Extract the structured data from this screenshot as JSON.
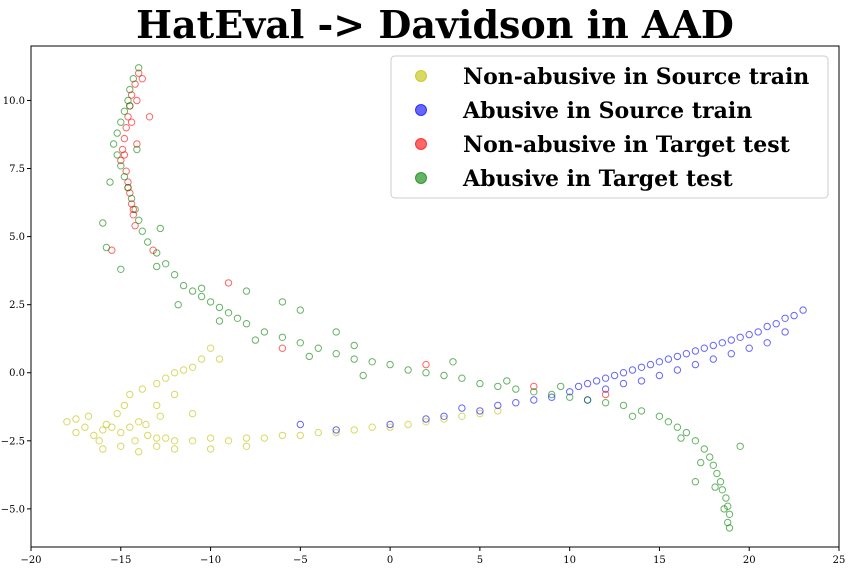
{
  "chart_data": {
    "type": "scatter",
    "title": "HatEval -> Davidson in AAD",
    "xlabel": "",
    "ylabel": "",
    "xlim": [
      -20,
      25
    ],
    "ylim": [
      -6.4,
      12.0
    ],
    "x_ticks": [
      "−20",
      "−15",
      "−10",
      "−5",
      "0",
      "5",
      "10",
      "15",
      "20",
      "25"
    ],
    "x_tick_values": [
      -20,
      -15,
      -10,
      -5,
      0,
      5,
      10,
      15,
      20,
      25
    ],
    "y_ticks": [
      "−5.0",
      "−2.5",
      "0.0",
      "2.5",
      "5.0",
      "7.5",
      "10.0"
    ],
    "y_tick_values": [
      -5.0,
      -2.5,
      0.0,
      2.5,
      5.0,
      7.5,
      10.0
    ],
    "grid": false,
    "legend_position": "top-right",
    "marker": "hollow-circle",
    "series": [
      {
        "name": "Non-abusive in Source train",
        "color": "#bfbf00",
        "points": [
          [
            -18,
            -1.8
          ],
          [
            -17.5,
            -2.2
          ],
          [
            -17,
            -2.0
          ],
          [
            -16.5,
            -2.3
          ],
          [
            -16,
            -2.1
          ],
          [
            -15.5,
            -2.0
          ],
          [
            -15,
            -2.2
          ],
          [
            -14.5,
            -2.0
          ],
          [
            -14,
            -1.8
          ],
          [
            -13.5,
            -2.3
          ],
          [
            -13,
            -2.4
          ],
          [
            -12.5,
            -2.4
          ],
          [
            -12,
            -2.5
          ],
          [
            -11,
            -2.5
          ],
          [
            -10,
            -2.4
          ],
          [
            -9,
            -2.5
          ],
          [
            -8,
            -2.4
          ],
          [
            -7,
            -2.4
          ],
          [
            -6,
            -2.3
          ],
          [
            -5,
            -2.3
          ],
          [
            -4,
            -2.2
          ],
          [
            -3,
            -2.2
          ],
          [
            -2,
            -2.1
          ],
          [
            -1,
            -2.0
          ],
          [
            0,
            -2.0
          ],
          [
            1,
            -1.9
          ],
          [
            2,
            -1.8
          ],
          [
            3,
            -1.7
          ],
          [
            4,
            -1.6
          ],
          [
            5,
            -1.5
          ],
          [
            6,
            -1.4
          ],
          [
            -16,
            -2.8
          ],
          [
            -15,
            -2.7
          ],
          [
            -16.8,
            -1.6
          ],
          [
            -15.2,
            -1.5
          ],
          [
            -14.8,
            -1.2
          ],
          [
            -14.5,
            -0.8
          ],
          [
            -13.8,
            -0.6
          ],
          [
            -13,
            -0.4
          ],
          [
            -12.5,
            -0.2
          ],
          [
            -12,
            0.0
          ],
          [
            -11.5,
            0.1
          ],
          [
            -11,
            0.2
          ],
          [
            -10.5,
            0.5
          ],
          [
            -10,
            0.9
          ],
          [
            -9.5,
            0.5
          ],
          [
            -12,
            -0.8
          ],
          [
            -13,
            -1.2
          ],
          [
            -11,
            -1.5
          ],
          [
            -14,
            -2.9
          ],
          [
            -13,
            -2.7
          ],
          [
            -12,
            -2.8
          ],
          [
            -10,
            -2.8
          ],
          [
            -8,
            -2.7
          ],
          [
            -17.5,
            -1.7
          ],
          [
            -16.2,
            -2.5
          ],
          [
            -15.8,
            -1.9
          ],
          [
            -14.2,
            -2.5
          ],
          [
            -13.6,
            -1.9
          ],
          [
            -12.8,
            -1.6
          ]
        ]
      },
      {
        "name": "Abusive in Source train",
        "color": "#0000ff",
        "points": [
          [
            -5,
            -1.9
          ],
          [
            -3,
            -2.1
          ],
          [
            0,
            -1.9
          ],
          [
            2,
            -1.7
          ],
          [
            3,
            -1.6
          ],
          [
            4,
            -1.3
          ],
          [
            5,
            -1.4
          ],
          [
            6,
            -1.2
          ],
          [
            7,
            -1.1
          ],
          [
            8,
            -1.0
          ],
          [
            9,
            -0.9
          ],
          [
            10,
            -0.7
          ],
          [
            10.5,
            -0.5
          ],
          [
            11,
            -0.4
          ],
          [
            11.5,
            -0.3
          ],
          [
            12,
            -0.2
          ],
          [
            12.5,
            -0.1
          ],
          [
            13,
            0.0
          ],
          [
            13.5,
            0.1
          ],
          [
            14,
            0.2
          ],
          [
            14.5,
            0.3
          ],
          [
            15,
            0.4
          ],
          [
            15.5,
            0.5
          ],
          [
            16,
            0.6
          ],
          [
            16.5,
            0.7
          ],
          [
            17,
            0.8
          ],
          [
            17.5,
            0.9
          ],
          [
            18,
            1.0
          ],
          [
            18.5,
            1.1
          ],
          [
            19,
            1.2
          ],
          [
            19.5,
            1.3
          ],
          [
            20,
            1.4
          ],
          [
            20.5,
            1.5
          ],
          [
            21,
            1.7
          ],
          [
            21.5,
            1.8
          ],
          [
            22,
            2.0
          ],
          [
            22.5,
            2.1
          ],
          [
            23,
            2.3
          ],
          [
            12,
            -0.6
          ],
          [
            13,
            -0.4
          ],
          [
            14,
            -0.3
          ],
          [
            15,
            -0.1
          ],
          [
            16,
            0.1
          ],
          [
            17,
            0.3
          ],
          [
            18,
            0.5
          ],
          [
            19,
            0.7
          ],
          [
            20,
            0.9
          ],
          [
            21,
            1.1
          ],
          [
            22,
            1.5
          ],
          [
            11,
            -1.0
          ]
        ]
      },
      {
        "name": "Non-abusive in Target test",
        "color": "#ff0000",
        "points": [
          [
            -14,
            11.0
          ],
          [
            -14.2,
            10.6
          ],
          [
            -14.4,
            10.2
          ],
          [
            -14.5,
            9.8
          ],
          [
            -14.6,
            9.4
          ],
          [
            -14.7,
            9.0
          ],
          [
            -14.8,
            8.6
          ],
          [
            -14.9,
            8.2
          ],
          [
            -15,
            7.8
          ],
          [
            -14.7,
            7.4
          ],
          [
            -14.6,
            7.0
          ],
          [
            -14.5,
            6.6
          ],
          [
            -14.4,
            6.2
          ],
          [
            -14.3,
            5.8
          ],
          [
            -14.2,
            5.4
          ],
          [
            -15.5,
            4.5
          ],
          [
            -13.2,
            4.5
          ],
          [
            -9,
            3.3
          ],
          [
            -13.8,
            10.8
          ],
          [
            -14.1,
            10.0
          ],
          [
            -14.4,
            9.2
          ],
          [
            -14.8,
            8.0
          ],
          [
            -14.6,
            6.8
          ],
          [
            -14.3,
            6.0
          ],
          [
            -13.4,
            9.4
          ],
          [
            -14.1,
            8.4
          ],
          [
            -6,
            0.9
          ],
          [
            2,
            0.3
          ],
          [
            8,
            -0.5
          ],
          [
            12,
            -0.8
          ]
        ]
      },
      {
        "name": "Abusive in Target test",
        "color": "#008000",
        "points": [
          [
            -14,
            11.2
          ],
          [
            -14.3,
            10.8
          ],
          [
            -14.5,
            10.4
          ],
          [
            -14.6,
            10.0
          ],
          [
            -14.8,
            9.6
          ],
          [
            -15,
            9.2
          ],
          [
            -15.2,
            8.8
          ],
          [
            -15.4,
            8.4
          ],
          [
            -15.2,
            8.0
          ],
          [
            -15,
            7.6
          ],
          [
            -14.8,
            7.2
          ],
          [
            -14.6,
            6.8
          ],
          [
            -14.4,
            6.4
          ],
          [
            -14.2,
            6.0
          ],
          [
            -14,
            5.6
          ],
          [
            -13.8,
            5.2
          ],
          [
            -13.5,
            4.8
          ],
          [
            -13,
            4.4
          ],
          [
            -12.5,
            4.0
          ],
          [
            -12,
            3.6
          ],
          [
            -11.5,
            3.2
          ],
          [
            -11,
            3.0
          ],
          [
            -10.5,
            2.8
          ],
          [
            -10,
            2.6
          ],
          [
            -9.5,
            2.4
          ],
          [
            -9,
            2.2
          ],
          [
            -8.5,
            2.0
          ],
          [
            -8,
            1.8
          ],
          [
            -7,
            1.5
          ],
          [
            -6,
            1.3
          ],
          [
            -5,
            1.1
          ],
          [
            -4,
            0.9
          ],
          [
            -3,
            0.7
          ],
          [
            -2,
            0.5
          ],
          [
            -1,
            0.4
          ],
          [
            0,
            0.3
          ],
          [
            1,
            0.1
          ],
          [
            2,
            0.0
          ],
          [
            3,
            -0.1
          ],
          [
            4,
            -0.2
          ],
          [
            5,
            -0.4
          ],
          [
            6,
            -0.5
          ],
          [
            7,
            -0.6
          ],
          [
            8,
            -0.7
          ],
          [
            9,
            -0.8
          ],
          [
            10,
            -0.9
          ],
          [
            11,
            -1.0
          ],
          [
            12,
            -1.1
          ],
          [
            13,
            -1.2
          ],
          [
            14,
            -1.4
          ],
          [
            15,
            -1.6
          ],
          [
            15.5,
            -1.8
          ],
          [
            16,
            -2.0
          ],
          [
            16.5,
            -2.2
          ],
          [
            17,
            -2.5
          ],
          [
            17.5,
            -2.8
          ],
          [
            17.8,
            -3.1
          ],
          [
            18,
            -3.4
          ],
          [
            18.2,
            -3.7
          ],
          [
            18.4,
            -4.0
          ],
          [
            18.5,
            -4.3
          ],
          [
            18.7,
            -4.6
          ],
          [
            18.8,
            -4.9
          ],
          [
            18.9,
            -5.2
          ],
          [
            18.8,
            -5.5
          ],
          [
            18.9,
            -5.7
          ],
          [
            19.5,
            -2.7
          ],
          [
            17,
            -4.0
          ],
          [
            -16,
            5.5
          ],
          [
            -15.8,
            4.6
          ],
          [
            -10.5,
            3.1
          ],
          [
            -8,
            3.0
          ],
          [
            -6,
            2.6
          ],
          [
            -5,
            2.3
          ],
          [
            -3,
            1.5
          ],
          [
            -2,
            1.0
          ],
          [
            -15,
            3.8
          ],
          [
            -13,
            3.9
          ],
          [
            -14.5,
            9.8
          ],
          [
            -14.1,
            8.2
          ],
          [
            -15.6,
            7.0
          ],
          [
            -12.8,
            5.3
          ],
          [
            -11.8,
            2.5
          ],
          [
            -9.5,
            1.9
          ],
          [
            -7.5,
            1.2
          ],
          [
            -4.5,
            0.6
          ],
          [
            -1.5,
            -0.1
          ],
          [
            3.5,
            0.4
          ],
          [
            6.5,
            -0.3
          ],
          [
            9.5,
            -0.5
          ],
          [
            13.5,
            -1.6
          ],
          [
            16.2,
            -2.4
          ],
          [
            17.3,
            -3.3
          ],
          [
            18.1,
            -4.2
          ],
          [
            18.6,
            -5.0
          ]
        ]
      }
    ]
  }
}
